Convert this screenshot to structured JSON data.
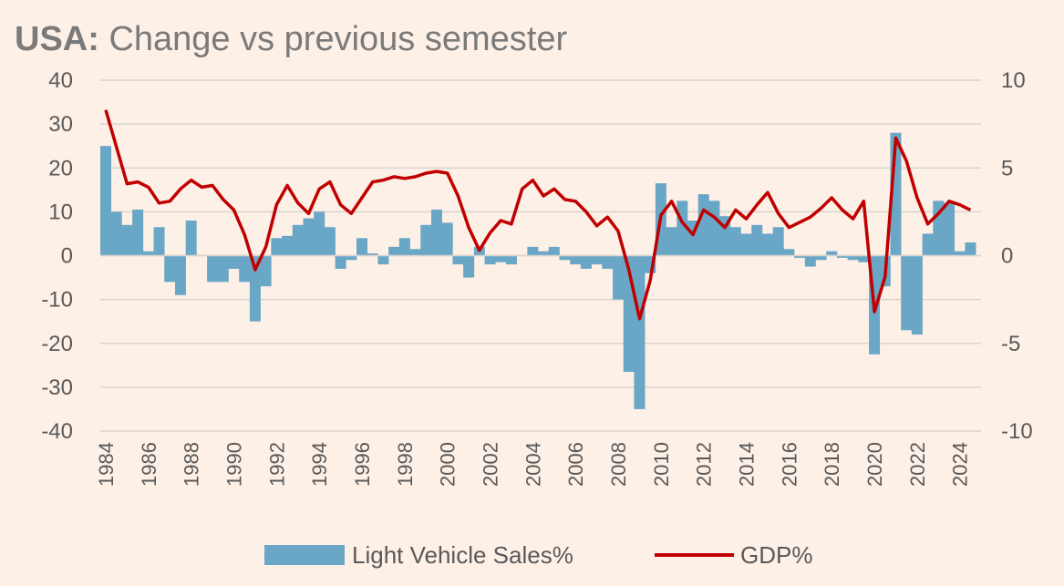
{
  "title_bold": "USA:",
  "title_rest": " Change vs previous semester",
  "colors": {
    "bars": "#6aa7c7",
    "line": "#c00000",
    "grid": "#d9d4cf",
    "background": "#fdf0e6"
  },
  "chart_data": {
    "type": "bar",
    "grid": true,
    "legend_position": "bottom",
    "x_tick_labels": [
      "1984",
      "1986",
      "1988",
      "1990",
      "1992",
      "1994",
      "1996",
      "1998",
      "2000",
      "2002",
      "2004",
      "2006",
      "2008",
      "2010",
      "2012",
      "2014",
      "2016",
      "2018",
      "2020",
      "2022",
      "2024"
    ],
    "y_left": {
      "ticks": [
        40,
        30,
        20,
        10,
        0,
        -10,
        -20,
        -30,
        -40
      ],
      "ylim": [
        -40,
        40
      ]
    },
    "y_right": {
      "ticks": [
        10,
        5,
        0,
        -5,
        -10
      ],
      "ylim": [
        -10,
        10
      ]
    },
    "series": [
      {
        "name": "Light Vehicle Sales%",
        "type": "bar",
        "axis": "left",
        "x": [
          1984,
          1984.5,
          1985,
          1985.5,
          1986,
          1986.5,
          1987,
          1987.5,
          1988,
          1988.5,
          1989,
          1989.5,
          1990,
          1990.5,
          1991,
          1991.5,
          1992,
          1992.5,
          1993,
          1993.5,
          1994,
          1994.5,
          1995,
          1995.5,
          1996,
          1996.5,
          1997,
          1997.5,
          1998,
          1998.5,
          1999,
          1999.5,
          2000,
          2000.5,
          2001,
          2001.5,
          2002,
          2002.5,
          2003,
          2003.5,
          2004,
          2004.5,
          2005,
          2005.5,
          2006,
          2006.5,
          2007,
          2007.5,
          2008,
          2008.5,
          2009,
          2009.5,
          2010,
          2010.5,
          2011,
          2011.5,
          2012,
          2012.5,
          2013,
          2013.5,
          2014,
          2014.5,
          2015,
          2015.5,
          2016,
          2016.5,
          2017,
          2017.5,
          2018,
          2018.5,
          2019,
          2019.5,
          2020,
          2020.5,
          2021,
          2021.5,
          2022,
          2022.5,
          2023,
          2023.5,
          2024,
          2024.5
        ],
        "values": [
          25,
          10,
          7,
          10.5,
          1,
          6.5,
          -6,
          -9,
          8,
          0,
          -6,
          -6,
          -3,
          -6,
          -15,
          -7,
          4,
          4.5,
          7,
          8.5,
          10,
          6.5,
          -3,
          -1,
          4,
          0.5,
          -2,
          2,
          4,
          1.5,
          7,
          10.5,
          7.5,
          -2,
          -5,
          2,
          -2,
          -1.5,
          -2,
          0,
          2,
          1,
          2,
          -1,
          -2,
          -3,
          -2,
          -3,
          -10,
          -26.5,
          -35,
          -4,
          16.5,
          6.5,
          12.5,
          8,
          14,
          12.5,
          9,
          6.5,
          5,
          7,
          5,
          6.5,
          1.5,
          -0.5,
          -2.5,
          -1,
          1,
          -0.5,
          -1,
          -1.5,
          -22.5,
          -7,
          28,
          -17,
          -18,
          5,
          12.5,
          12,
          1,
          3
        ]
      },
      {
        "name": "GDP%",
        "type": "line",
        "axis": "right",
        "x": [
          1984,
          1984.5,
          1985,
          1985.5,
          1986,
          1986.5,
          1987,
          1987.5,
          1988,
          1988.5,
          1989,
          1989.5,
          1990,
          1990.5,
          1991,
          1991.5,
          1992,
          1992.5,
          1993,
          1993.5,
          1994,
          1994.5,
          1995,
          1995.5,
          1996,
          1996.5,
          1997,
          1997.5,
          1998,
          1998.5,
          1999,
          1999.5,
          2000,
          2000.5,
          2001,
          2001.5,
          2002,
          2002.5,
          2003,
          2003.5,
          2004,
          2004.5,
          2005,
          2005.5,
          2006,
          2006.5,
          2007,
          2007.5,
          2008,
          2008.5,
          2009,
          2009.5,
          2010,
          2010.5,
          2011,
          2011.5,
          2012,
          2012.5,
          2013,
          2013.5,
          2014,
          2014.5,
          2015,
          2015.5,
          2016,
          2016.5,
          2017,
          2017.5,
          2018,
          2018.5,
          2019,
          2019.5,
          2020,
          2020.5,
          2021,
          2021.5,
          2022,
          2022.5,
          2023,
          2023.5,
          2024,
          2024.5
        ],
        "values": [
          8.3,
          6.2,
          4.1,
          4.2,
          3.9,
          3.0,
          3.1,
          3.8,
          4.3,
          3.9,
          4.0,
          3.2,
          2.6,
          1.2,
          -0.8,
          0.5,
          2.9,
          4.0,
          3.0,
          2.4,
          3.8,
          4.2,
          2.9,
          2.4,
          3.3,
          4.2,
          4.3,
          4.5,
          4.4,
          4.5,
          4.7,
          4.8,
          4.7,
          3.4,
          1.6,
          0.3,
          1.3,
          2.0,
          1.8,
          3.8,
          4.3,
          3.4,
          3.8,
          3.2,
          3.1,
          2.5,
          1.7,
          2.2,
          1.4,
          -0.8,
          -3.6,
          -1.4,
          2.3,
          3.1,
          1.9,
          1.2,
          2.6,
          2.2,
          1.6,
          2.6,
          2.1,
          2.9,
          3.6,
          2.4,
          1.6,
          1.9,
          2.2,
          2.7,
          3.3,
          2.6,
          2.1,
          3.1,
          -3.2,
          -1.2,
          6.7,
          5.4,
          3.3,
          1.8,
          2.4,
          3.1,
          2.9,
          2.6
        ]
      }
    ]
  }
}
